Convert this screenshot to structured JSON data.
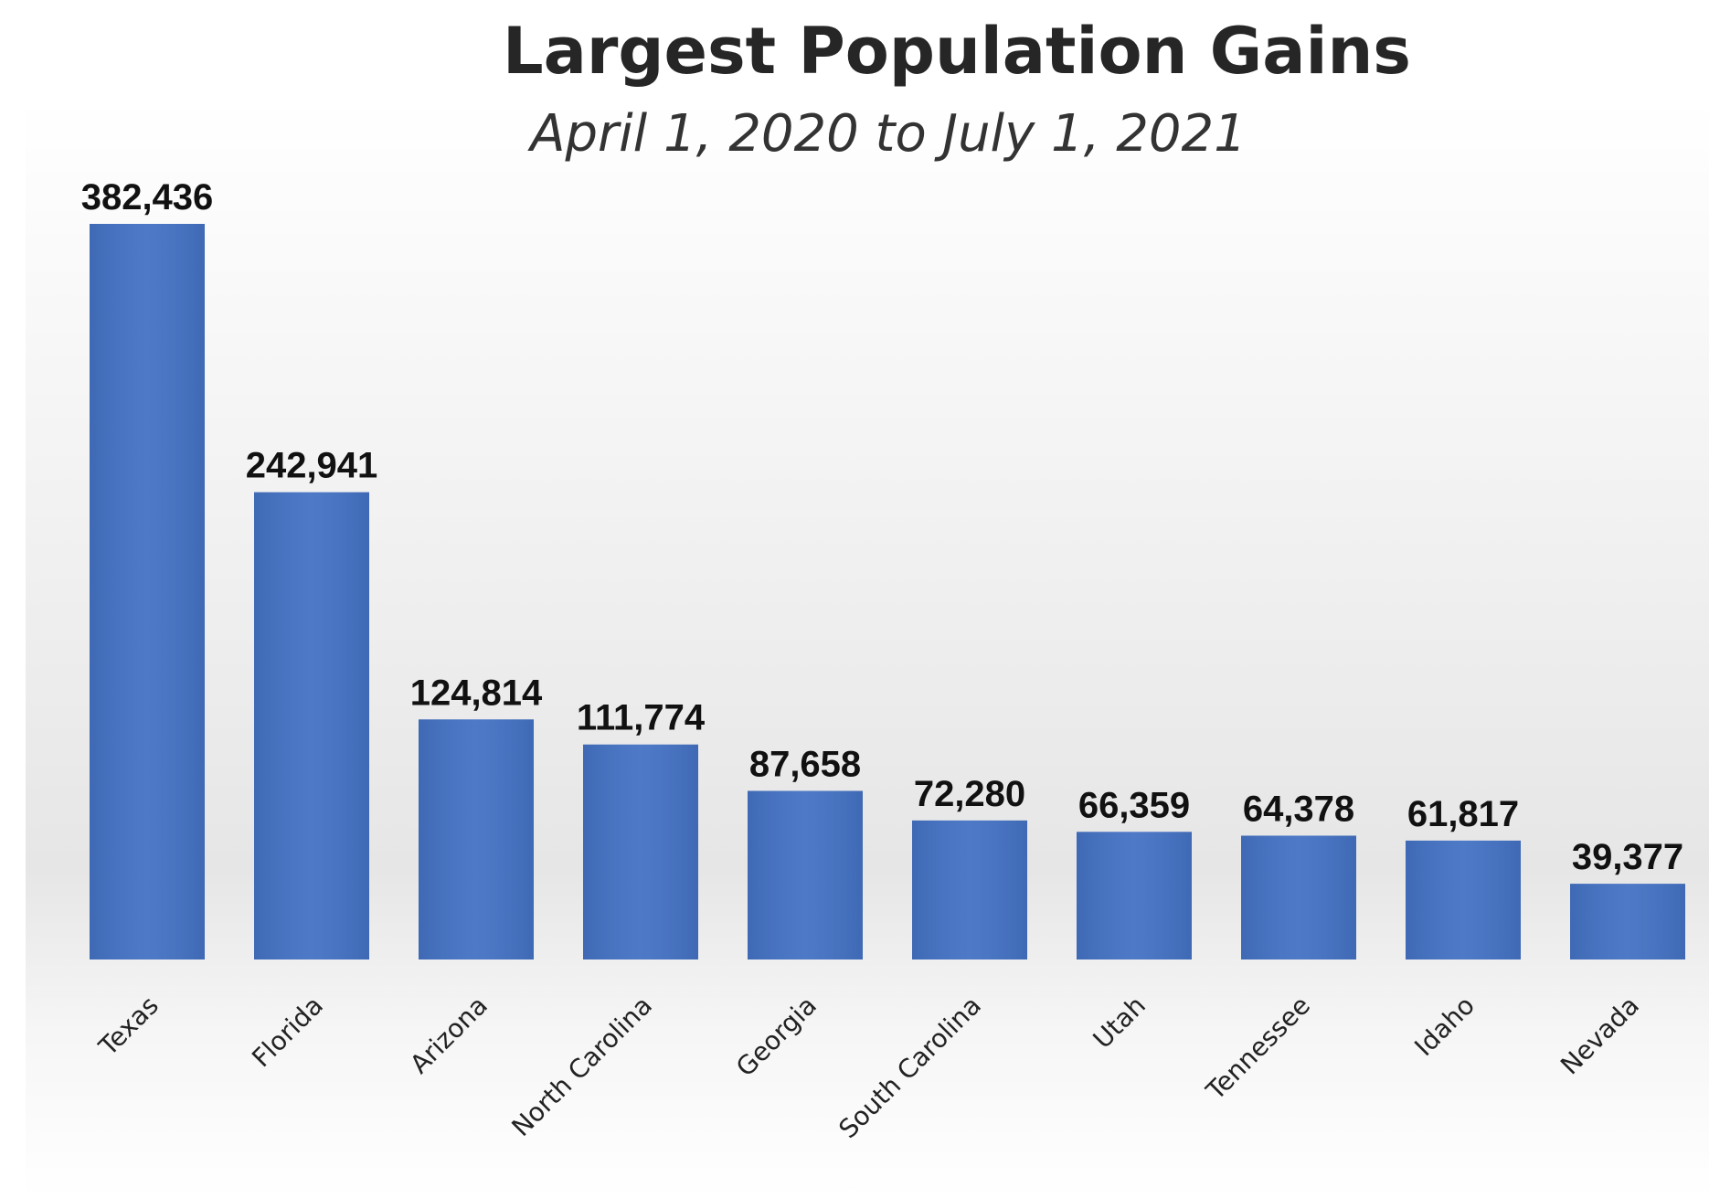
{
  "chart_data": {
    "type": "bar",
    "title": "Largest Population Gains",
    "subtitle": "April 1, 2020 to July 1, 2021",
    "categories": [
      "Texas",
      "Florida",
      "Arizona",
      "North Carolina",
      "Georgia",
      "South Carolina",
      "Utah",
      "Tennessee",
      "Idaho",
      "Nevada"
    ],
    "values": [
      382436,
      242941,
      124814,
      111774,
      87658,
      72280,
      66359,
      64378,
      61817,
      39377
    ],
    "value_labels": [
      "382,436",
      "242,941",
      "124,814",
      "111,774",
      "87,658",
      "72,280",
      "66,359",
      "64,378",
      "61,817",
      "39,377"
    ],
    "color": "#4472c4"
  }
}
